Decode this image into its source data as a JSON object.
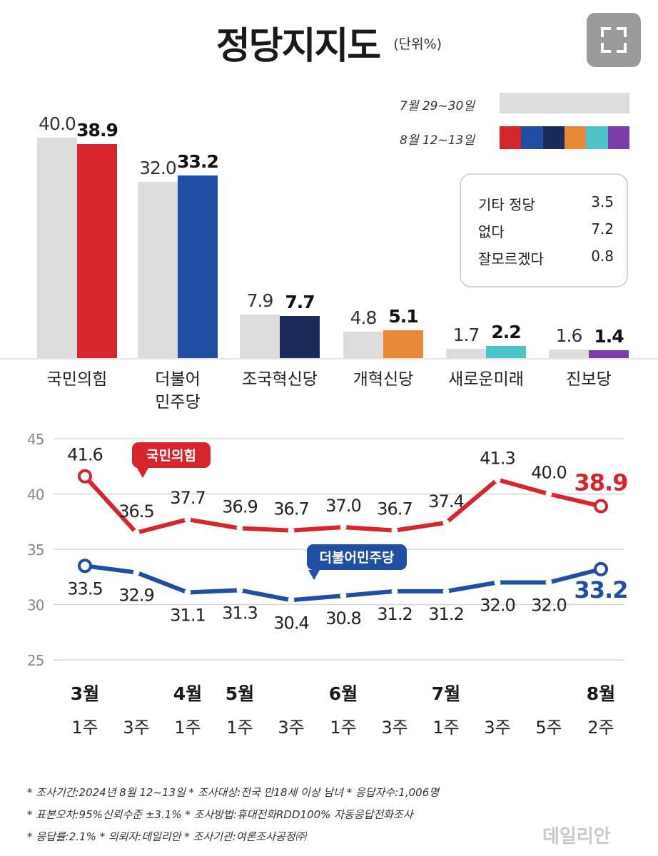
{
  "title": "정당지지도",
  "unit": "(단위%)",
  "legend": {
    "previous_label": "7월 29~30일",
    "current_label": "8월 12~13일",
    "previous_color": "#dcdcdc",
    "current_colors": [
      "#d7252d",
      "#1f4ea3",
      "#1a2a5a",
      "#e8893a",
      "#4cc3c8",
      "#7a3ea8"
    ]
  },
  "others": [
    {
      "label": "기타 정당",
      "value": "3.5"
    },
    {
      "label": "없다",
      "value": "7.2"
    },
    {
      "label": "잘모르겠다",
      "value": "0.8"
    }
  ],
  "chart_data": [
    {
      "type": "bar",
      "categories": [
        "국민의힘",
        "더불어 민주당",
        "조국혁신당",
        "개혁신당",
        "새로운미래",
        "진보당"
      ],
      "series": [
        {
          "name": "7월 29~30일",
          "values": [
            40.0,
            32.0,
            7.9,
            4.8,
            1.7,
            1.6
          ],
          "labels": [
            "40.0",
            "32.0",
            "7.9",
            "4.8",
            "1.7",
            "1.6"
          ]
        },
        {
          "name": "8월 12~13일",
          "values": [
            38.9,
            33.2,
            7.7,
            5.1,
            2.2,
            1.4
          ],
          "labels": [
            "38.9",
            "33.2",
            "7.7",
            "5.1",
            "2.2",
            "1.4"
          ]
        }
      ],
      "colors_current": [
        "#d7252d",
        "#1f4ea3",
        "#1a2a5a",
        "#e8893a",
        "#4cc3c8",
        "#7a3ea8"
      ],
      "name_lines": [
        [
          "국민의힘"
        ],
        [
          "더불어",
          "민주당"
        ],
        [
          "조국혁신당"
        ],
        [
          "개혁신당"
        ],
        [
          "새로운미래"
        ],
        [
          "진보당"
        ]
      ]
    },
    {
      "type": "line",
      "ylim": [
        25,
        45
      ],
      "yticks": [
        "45",
        "40",
        "35",
        "30",
        "25"
      ],
      "x_weeks": [
        "1주",
        "3주",
        "1주",
        "1주",
        "3주",
        "1주",
        "3주",
        "1주",
        "3주",
        "5주",
        "2주"
      ],
      "x_months": [
        "3월",
        "",
        "4월",
        "5월",
        "",
        "6월",
        "",
        "7월",
        "",
        "",
        "8월"
      ],
      "series": [
        {
          "name": "국민의힘",
          "color": "#d7252d",
          "values": [
            41.6,
            36.5,
            37.7,
            36.9,
            36.7,
            37.0,
            36.7,
            37.4,
            41.3,
            40.0,
            38.9
          ],
          "labels": [
            "41.6",
            "36.5",
            "37.7",
            "36.9",
            "36.7",
            "37.0",
            "36.7",
            "37.4",
            "41.3",
            "40.0",
            "38.9"
          ]
        },
        {
          "name": "더불어민주당",
          "color": "#1f4ea3",
          "values": [
            33.5,
            32.9,
            31.1,
            31.3,
            30.4,
            30.8,
            31.2,
            31.2,
            32.0,
            32.0,
            33.2
          ],
          "labels": [
            "33.5",
            "32.9",
            "31.1",
            "31.3",
            "30.4",
            "30.8",
            "31.2",
            "31.2",
            "32.0",
            "32.0",
            "33.2"
          ]
        }
      ]
    }
  ],
  "footer": {
    "line1": "* 조사기간:2024년 8월 12~13일  * 조사대상:전국 만18세 이상 남녀  * 응답자수:1,006명",
    "line2": "* 표본오차:95%신뢰수준 ±3.1%  * 조사방법:휴대전화RDD100% 자동응답전화조사",
    "line3": "* 응답률:2.1%  * 의뢰자:데일리안  * 조사기관:여론조사공정㈜"
  },
  "watermark": "데일리안"
}
